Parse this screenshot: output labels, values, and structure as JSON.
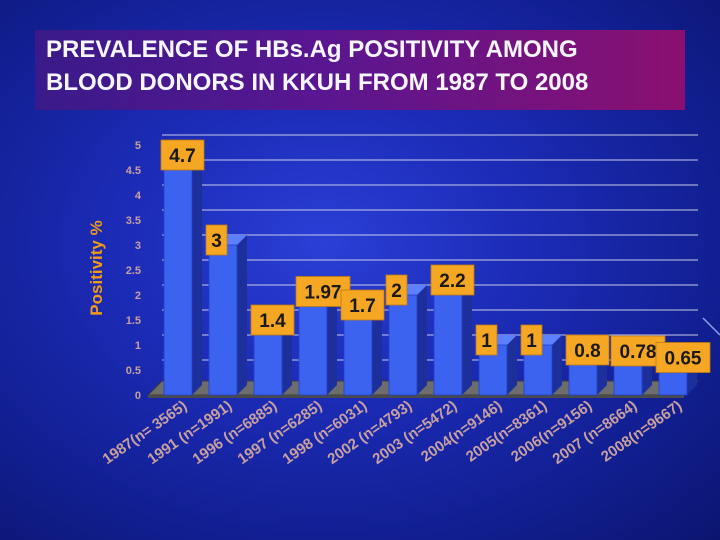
{
  "slide": {
    "title_line1": "PREVALENCE OF HBs.Ag POSITIVITY AMONG",
    "title_line2": "BLOOD DONORS IN KKUH FROM 1987 TO 2008"
  },
  "colors": {
    "bar_front": "#3b63f0",
    "bar_side": "#1d2f9a",
    "label_bg": "#f5a623",
    "axis_text": "#c9a0a0",
    "ylabel": "#f09a18",
    "gridline": "#c8cbe6"
  },
  "chart_data": {
    "type": "bar",
    "title": "PREVALENCE OF HBs.Ag POSITIVITY AMONG BLOOD DONORS IN KKUH FROM 1987 TO 2008",
    "xlabel": "",
    "ylabel": "Positivity %",
    "ylim": [
      0,
      5
    ],
    "yticks": [
      "0",
      "0.5",
      "1",
      "1.5",
      "2",
      "2.5",
      "3",
      "3.5",
      "4",
      "4.5",
      "5"
    ],
    "grid": true,
    "categories": [
      "1987(n= 3565)",
      "1991 (n=1991)",
      "1996 (n=6885)",
      "1997 (n=6285)",
      "1998 (n=6031)",
      "2002 (n=4793)",
      "2003 (n=5472)",
      "2004(n=9146)",
      "2005(n=8361)",
      "2006(n=9156)",
      "2007 (n=8664)",
      "2008(n=9667)"
    ],
    "values": [
      4.7,
      3,
      1.4,
      1.97,
      1.7,
      2,
      2.2,
      1,
      1,
      0.8,
      0.78,
      0.65
    ],
    "data_labels": [
      "4.7",
      "3",
      "1.4",
      "1.97",
      "1.7",
      "2",
      "2.2",
      "1",
      "1",
      "0.8",
      "0.78",
      "0.65"
    ]
  }
}
